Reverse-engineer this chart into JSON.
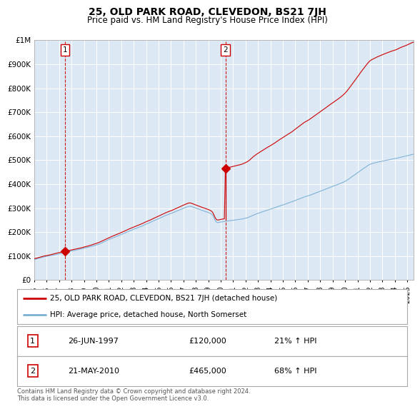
{
  "title": "25, OLD PARK ROAD, CLEVEDON, BS21 7JH",
  "subtitle": "Price paid vs. HM Land Registry's House Price Index (HPI)",
  "bg_color": "#dce9f5",
  "plot_bg_color": "#dce9f5",
  "outer_bg_color": "#ffffff",
  "red_line_color": "#cc0000",
  "blue_line_color": "#7bafd4",
  "marker_color": "#cc0000",
  "vline_color": "#cc0000",
  "ylabel_ticks": [
    "£0",
    "£100K",
    "£200K",
    "£300K",
    "£400K",
    "£500K",
    "£600K",
    "£700K",
    "£800K",
    "£900K",
    "£1M"
  ],
  "ytick_values": [
    0,
    100000,
    200000,
    300000,
    400000,
    500000,
    600000,
    700000,
    800000,
    900000,
    1000000
  ],
  "ylim": [
    0,
    1000000
  ],
  "xlim_start": 1995.0,
  "xlim_end": 2025.5,
  "sale1_x": 1997.48,
  "sale1_y": 120000,
  "sale1_label": "1",
  "sale1_date": "26-JUN-1997",
  "sale1_price": "£120,000",
  "sale1_hpi": "21% ↑ HPI",
  "sale2_x": 2010.38,
  "sale2_y": 465000,
  "sale2_label": "2",
  "sale2_date": "21-MAY-2010",
  "sale2_price": "£465,000",
  "sale2_hpi": "68% ↑ HPI",
  "legend_line1": "25, OLD PARK ROAD, CLEVEDON, BS21 7JH (detached house)",
  "legend_line2": "HPI: Average price, detached house, North Somerset",
  "footnote": "Contains HM Land Registry data © Crown copyright and database right 2024.\nThis data is licensed under the Open Government Licence v3.0.",
  "xtick_years": [
    1995,
    1996,
    1997,
    1998,
    1999,
    2000,
    2001,
    2002,
    2003,
    2004,
    2005,
    2006,
    2007,
    2008,
    2009,
    2010,
    2011,
    2012,
    2013,
    2014,
    2015,
    2016,
    2017,
    2018,
    2019,
    2020,
    2021,
    2022,
    2023,
    2024,
    2025
  ]
}
